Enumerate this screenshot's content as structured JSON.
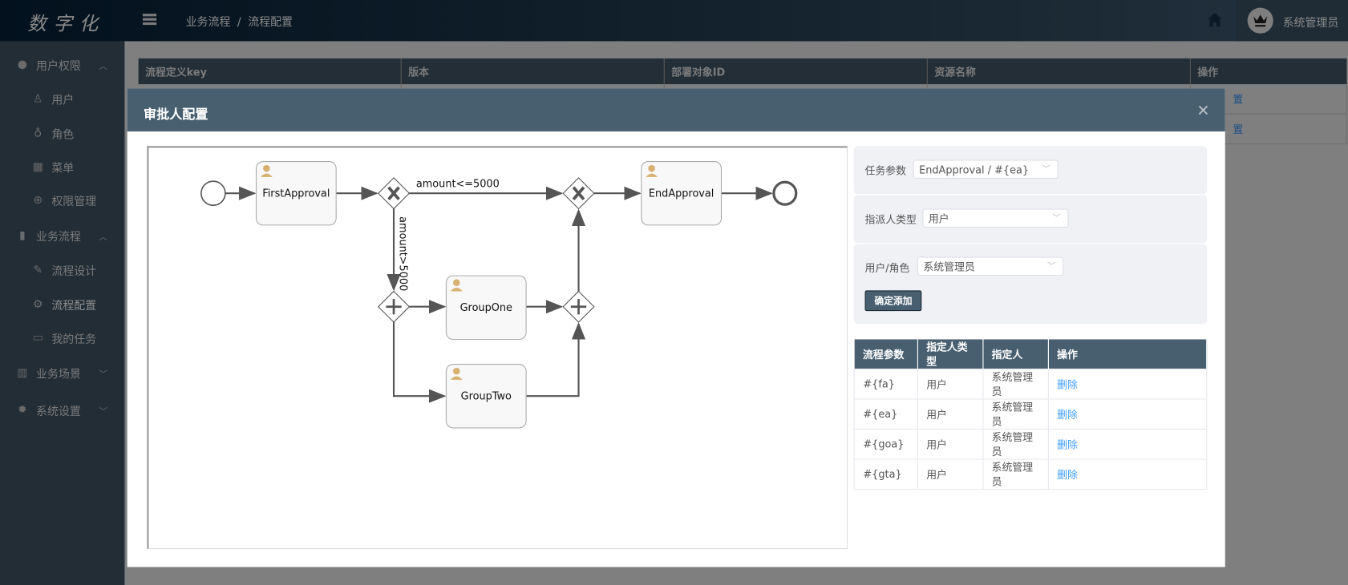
{
  "header": {
    "logo": "数字化",
    "breadcrumb": [
      "业务流程",
      "流程配置"
    ],
    "breadcrumb_sep": "/",
    "user_name": "系统管理员"
  },
  "sidebar": {
    "items": [
      {
        "label": "用户权限",
        "icon": "user-icon",
        "level": 1,
        "expanded": true
      },
      {
        "label": "用户",
        "icon": "person-outline-icon",
        "level": 2
      },
      {
        "label": "角色",
        "icon": "role-icon",
        "level": 2
      },
      {
        "label": "菜单",
        "icon": "grid-icon",
        "level": 2
      },
      {
        "label": "权限管理",
        "icon": "compass-icon",
        "level": 2
      },
      {
        "label": "业务流程",
        "icon": "bar-chart-icon",
        "level": 1,
        "expanded": true
      },
      {
        "label": "流程设计",
        "icon": "pencil-icon",
        "level": 2
      },
      {
        "label": "流程配置",
        "icon": "gear-icon",
        "level": 2,
        "active": true
      },
      {
        "label": "我的任务",
        "icon": "monitor-icon",
        "level": 2
      },
      {
        "label": "业务场景",
        "icon": "book-icon",
        "level": 1,
        "expanded": false
      },
      {
        "label": "系统设置",
        "icon": "settings-icon",
        "level": 1,
        "expanded": false
      }
    ]
  },
  "background_table": {
    "columns": [
      "流程定义key",
      "版本",
      "部署对象ID",
      "资源名称",
      "操作"
    ],
    "row_action": "置"
  },
  "modal": {
    "title": "审批人配置",
    "diagram": {
      "tasks": {
        "first": "FirstApproval",
        "end": "EndApproval",
        "one": "GroupOne",
        "two": "GroupTwo"
      },
      "flows": {
        "le": "amount<=5000",
        "gt": "amount>5000"
      }
    },
    "form": {
      "task_param_label": "任务参数",
      "task_param_value": "EndApproval / #{ea}",
      "assignee_type_label": "指派人类型",
      "assignee_type_value": "用户",
      "user_role_label": "用户/角色",
      "user_role_value": "系统管理员",
      "add_button": "确定添加"
    },
    "table": {
      "columns": [
        "流程参数",
        "指定人类型",
        "指定人",
        "操作"
      ],
      "rows": [
        {
          "param": "#{fa}",
          "type": "用户",
          "assignee": "系统管理员",
          "action": "删除"
        },
        {
          "param": "#{ea}",
          "type": "用户",
          "assignee": "系统管理员",
          "action": "删除"
        },
        {
          "param": "#{goa}",
          "type": "用户",
          "assignee": "系统管理员",
          "action": "删除"
        },
        {
          "param": "#{gta}",
          "type": "用户",
          "assignee": "系统管理员",
          "action": "删除"
        }
      ]
    }
  },
  "colors": {
    "topbar": "#02111d",
    "sidebar": "#222d36",
    "modal_header": "#485f6f",
    "link": "#409eff"
  }
}
